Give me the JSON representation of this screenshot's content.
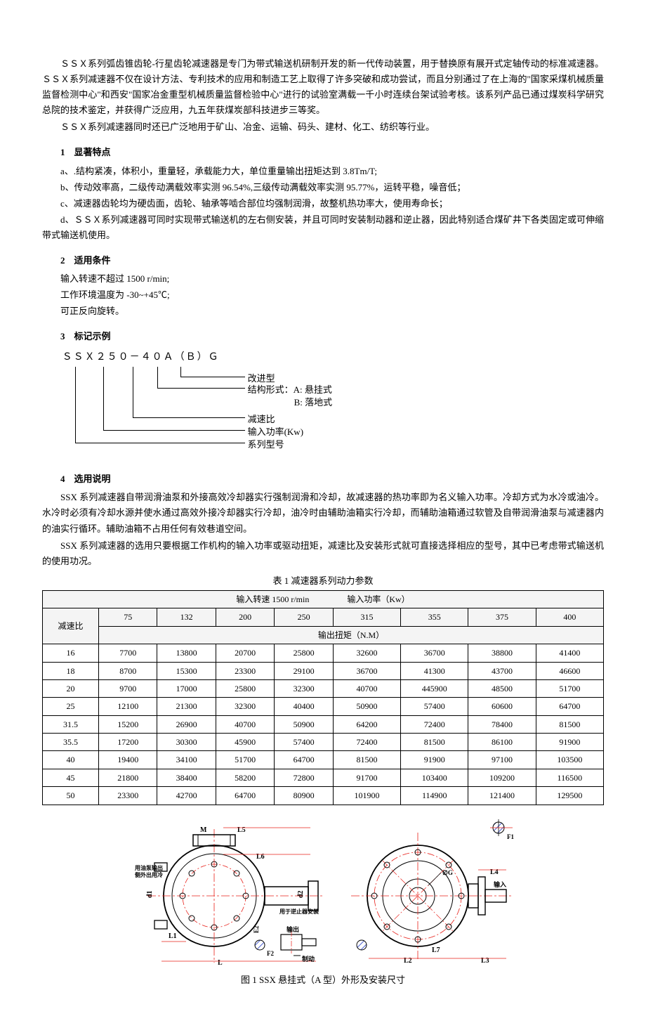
{
  "intro": {
    "p1": "ＳＳＸ系列弧齿锥齿轮-行星齿轮减速器是专门为带式输送机研制开发的新一代传动装置，用于替换原有展开式定轴传动的标准减速器。ＳＳＸ系列减速器不仅在设计方法、专利技术的应用和制造工艺上取得了许多突破和成功尝试，而且分别通过了在上海的\"国家采煤机械质量监督检测中心\"和西安\"国家冶金重型机械质量监督检验中心\"进行的试验室满载一千小时连续台架试验考核。该系列产品已通过煤炭科学研究总院的技术鉴定，并获得广泛应用，九五年获煤炭部科技进步三等奖。",
    "p2": "ＳＳＸ系列减速器同时还已广泛地用于矿山、冶金、运输、码头、建材、化工、纺织等行业。"
  },
  "sections": {
    "s1_title": "1　显著特点",
    "s1_a": "a、.结构紧凑，体积小，重量轻，承载能力大，单位重量输出扭矩达到 3.8Tm/T;",
    "s1_b": "b、传动效率高，二级传动满载效率实测 96.54%,三级传动满载效率实测 95.77%，运转平稳，噪音低；",
    "s1_c": "c、减速器齿轮均为硬齿面，齿轮、轴承等啮合部位均强制润滑，故整机热功率大，使用寿命长；",
    "s1_d": "d、ＳＳＸ系列减速器可同时实现带式输送机的左右侧安装，并且可同时安装制动器和逆止器，因此特别适合煤矿井下各类固定或可伸缩带式输送机使用。",
    "s2_title": "2　适用条件",
    "s2_a": "输入转速不超过 1500 r/min;",
    "s2_b": "工作环境温度为 -30~+45℃;",
    "s2_c": "可正反向旋转。",
    "s3_title": "3　标记示例",
    "s4_title": "4　选用说明",
    "s4_p1": "SSX 系列减速器自带润滑油泵和外接高效冷却器实行强制润滑和冷却，故减速器的热功率即为名义输入功率。冷却方式为水冷或油冷。水冷时必须有冷却水源并使水通过高效外接冷却器实行冷却，油冷时由辅助油箱实行冷却，而辅助油箱通过软管及自带润滑油泵与减速器内的油实行循环。辅助油箱不占用任何有效巷道空间。",
    "s4_p2": "SSX 系列减速器的选用只要根据工作机构的输入功率或驱动扭矩，减速比及安装形式就可直接选择相应的型号，其中已考虑带式输送机的使用功况。"
  },
  "model": {
    "code": "ＳＳＸ２５０－４０Ａ（Ｂ）Ｇ",
    "lbl_improved": "改进型",
    "lbl_struct": "结构形式：A: 悬挂式",
    "lbl_struct2": "B: 落地式",
    "lbl_ratio": "减速比",
    "lbl_power": "输入功率(Kw)",
    "lbl_series": "系列型号"
  },
  "table": {
    "caption": "表 1 减速器系列动力参数",
    "header_top_left": "输入转速 1500 r/min",
    "header_top_right": "输入功率（Kw）",
    "ratio_header": "减速比",
    "output_torque_header": "输出扭矩（N.M）",
    "power_cols": [
      "75",
      "132",
      "200",
      "250",
      "315",
      "355",
      "375",
      "400"
    ],
    "rows": [
      {
        "ratio": "16",
        "vals": [
          "7700",
          "13800",
          "20700",
          "25800",
          "32600",
          "36700",
          "38800",
          "41400"
        ]
      },
      {
        "ratio": "18",
        "vals": [
          "8700",
          "15300",
          "23300",
          "29100",
          "36700",
          "41300",
          "43700",
          "46600"
        ]
      },
      {
        "ratio": "20",
        "vals": [
          "9700",
          "17000",
          "25800",
          "32300",
          "40700",
          "445900",
          "48500",
          "51700"
        ]
      },
      {
        "ratio": "25",
        "vals": [
          "12100",
          "21300",
          "32300",
          "40400",
          "50900",
          "57400",
          "60600",
          "64700"
        ]
      },
      {
        "ratio": "31.5",
        "vals": [
          "15200",
          "26900",
          "40700",
          "50900",
          "64200",
          "72400",
          "78400",
          "81500"
        ]
      },
      {
        "ratio": "35.5",
        "vals": [
          "17200",
          "30300",
          "45900",
          "57400",
          "72400",
          "81500",
          "86100",
          "91900"
        ]
      },
      {
        "ratio": "40",
        "vals": [
          "19400",
          "34100",
          "51700",
          "64700",
          "81500",
          "91900",
          "97100",
          "103500"
        ]
      },
      {
        "ratio": "45",
        "vals": [
          "21800",
          "38400",
          "58200",
          "72800",
          "91700",
          "103400",
          "109200",
          "116500"
        ]
      },
      {
        "ratio": "50",
        "vals": [
          "23300",
          "42700",
          "64700",
          "80900",
          "101900",
          "114900",
          "121400",
          "129500"
        ]
      }
    ]
  },
  "figure": {
    "caption": "图 1 SSX 悬挂式（A 型）外形及安装尺寸",
    "labels": {
      "M": "M",
      "L5": "L5",
      "L6": "L6",
      "L": "L",
      "L1": "L1",
      "L2": "L2",
      "L3": "L3",
      "L4": "L4",
      "L7": "L7",
      "F1": "F1",
      "F2": "F2",
      "d1": "d1",
      "d2": "d2",
      "brake_txt": "制动",
      "out_txt": "输出",
      "in_txt": "输入",
      "backstop_txt": "用于逆止器安装",
      "pump_out_txt1": "用油泵输出",
      "pump_out_txt2": "侧外出用冷"
    },
    "colors": {
      "red": "#e8201a",
      "blk": "#000000",
      "hatch": "#4a5fd0"
    }
  }
}
